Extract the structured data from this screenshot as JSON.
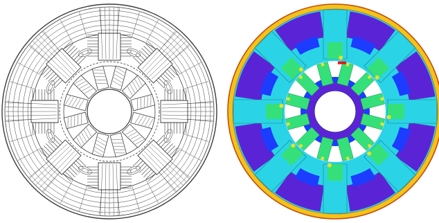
{
  "figure": {
    "left_view": "flux-line-plot",
    "right_view": "flux-density-contour"
  },
  "machine": {
    "stator_poles": 8,
    "rotor_poles": 12
  },
  "colors": {
    "background": "#ffffff",
    "line": "#3a3a3a",
    "outer_ring": "#f2c31a",
    "outer_ring_edge": "#c44a10",
    "low_field": "#5a24d6",
    "mid_low_field": "#1c3cff",
    "mid_field": "#2ad4e6",
    "high_field": "#35e07a",
    "hot_spot": "#e4e22a",
    "peak": "#e01818",
    "gap": "#ffffff"
  }
}
